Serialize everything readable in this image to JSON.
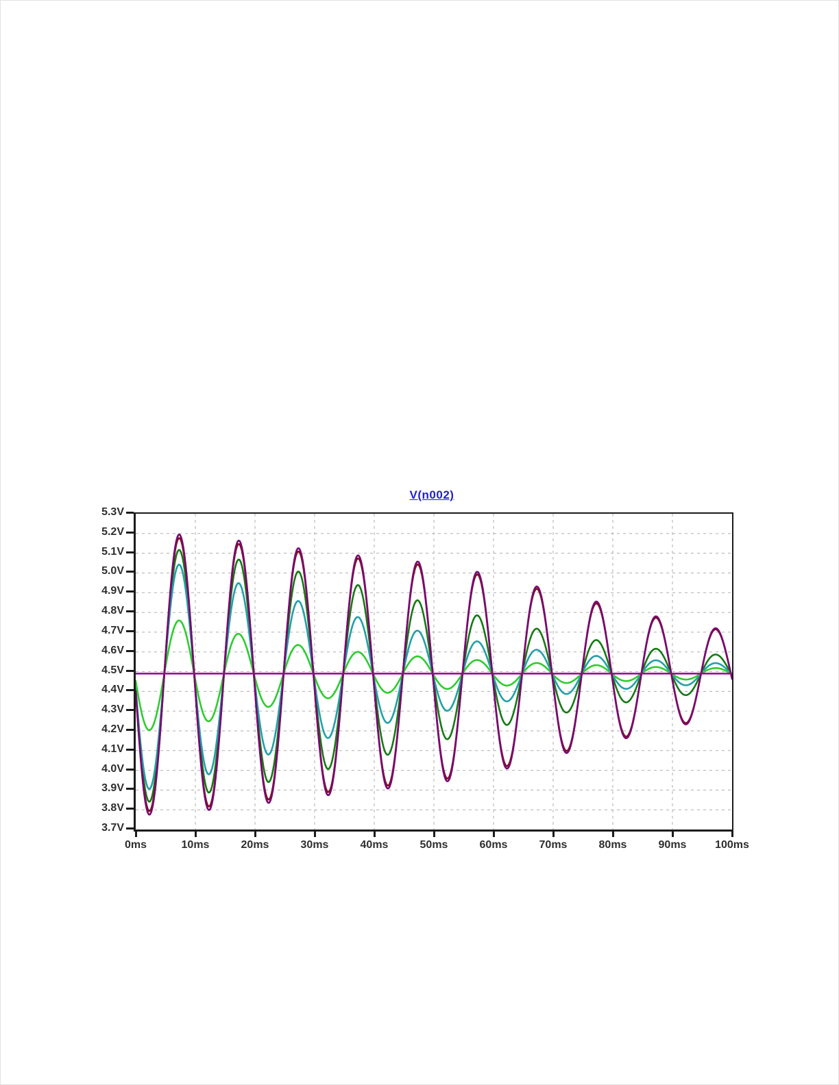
{
  "window": {
    "background_color": "#ffffff"
  },
  "chart_data": {
    "type": "line",
    "title": "V(n002)",
    "title_color": "#2222CC",
    "xlabel": "",
    "ylabel": "",
    "x_unit": "ms",
    "y_unit": "V",
    "xlim_ms": [
      0,
      100
    ],
    "ylim_V": [
      3.7,
      5.3
    ],
    "x_tick_step_ms": 10,
    "y_tick_step_V": 0.1,
    "x_tick_labels": [
      "0ms",
      "10ms",
      "20ms",
      "30ms",
      "40ms",
      "50ms",
      "60ms",
      "70ms",
      "80ms",
      "90ms",
      "100ms"
    ],
    "y_tick_labels": [
      "5.3V",
      "5.2V",
      "5.1V",
      "5.0V",
      "4.9V",
      "4.8V",
      "4.7V",
      "4.6V",
      "4.5V",
      "4.4V",
      "4.3V",
      "4.2V",
      "4.1V",
      "4.0V",
      "3.9V",
      "3.8V",
      "3.7V"
    ],
    "grid": "dashed",
    "grid_color": "#ADADAD",
    "axis_color": "#1b1b1b",
    "center_V": 4.49,
    "period_ms": 10,
    "phase_note": "all oscillating traces start at center 4.49V at t=0 and first swing negative; troughs near 2.5,12.5,...ms; peaks near 7.5,17.5,...ms",
    "series": [
      {
        "name": "trace-dark-green",
        "color": "#157A15",
        "type": "damped_sine",
        "first_peak_V": 5.13,
        "first_trough_V": 3.86,
        "last_peak_V": 4.58,
        "envelope_points": [
          [
            0,
            0.66
          ],
          [
            10,
            0.615
          ],
          [
            20,
            0.565
          ],
          [
            30,
            0.5
          ],
          [
            40,
            0.43
          ],
          [
            50,
            0.35
          ],
          [
            60,
            0.275
          ],
          [
            70,
            0.21
          ],
          [
            80,
            0.155
          ],
          [
            90,
            0.115
          ],
          [
            100,
            0.09
          ]
        ]
      },
      {
        "name": "trace-teal",
        "color": "#22A0A8",
        "type": "damped_sine",
        "first_peak_V": 5.05,
        "first_trough_V": 3.95,
        "last_peak_V": 4.54,
        "envelope_points": [
          [
            0,
            0.6
          ],
          [
            10,
            0.535
          ],
          [
            20,
            0.43
          ],
          [
            30,
            0.345
          ],
          [
            40,
            0.265
          ],
          [
            50,
            0.2
          ],
          [
            60,
            0.15
          ],
          [
            70,
            0.11
          ],
          [
            80,
            0.082
          ],
          [
            90,
            0.062
          ],
          [
            100,
            0.05
          ]
        ]
      },
      {
        "name": "trace-lime-green",
        "color": "#2ECC2E",
        "type": "damped_sine",
        "first_peak_V": 4.78,
        "first_trough_V": 4.22,
        "last_peak_V": 4.52,
        "envelope_points": [
          [
            0,
            0.295
          ],
          [
            10,
            0.26
          ],
          [
            20,
            0.18
          ],
          [
            30,
            0.132
          ],
          [
            40,
            0.102
          ],
          [
            50,
            0.082
          ],
          [
            60,
            0.064
          ],
          [
            70,
            0.05
          ],
          [
            80,
            0.04
          ],
          [
            90,
            0.031
          ],
          [
            100,
            0.027
          ]
        ]
      },
      {
        "name": "trace-dark-red",
        "color": "#801010",
        "type": "damped_sine",
        "first_peak_V": 5.19,
        "first_trough_V": 3.79,
        "last_peak_V": 4.7,
        "envelope_points": [
          [
            0,
            0.702
          ],
          [
            10,
            0.682
          ],
          [
            20,
            0.648
          ],
          [
            30,
            0.609
          ],
          [
            40,
            0.575
          ],
          [
            50,
            0.546
          ],
          [
            60,
            0.487
          ],
          [
            70,
            0.409
          ],
          [
            80,
            0.336
          ],
          [
            90,
            0.263
          ],
          [
            100,
            0.21
          ]
        ]
      },
      {
        "name": "trace-purple",
        "color": "#780A73",
        "type": "damped_sine",
        "first_peak_V": 5.2,
        "first_trough_V": 3.78,
        "last_peak_V": 4.71,
        "envelope_points": [
          [
            0,
            0.72
          ],
          [
            10,
            0.7
          ],
          [
            20,
            0.665
          ],
          [
            30,
            0.625
          ],
          [
            40,
            0.59
          ],
          [
            50,
            0.56
          ],
          [
            60,
            0.5
          ],
          [
            70,
            0.42
          ],
          [
            80,
            0.345
          ],
          [
            90,
            0.27
          ],
          [
            100,
            0.215
          ]
        ]
      },
      {
        "name": "trace-magenta-flat",
        "color": "#930093",
        "type": "constant",
        "value_V": 4.49
      }
    ]
  }
}
